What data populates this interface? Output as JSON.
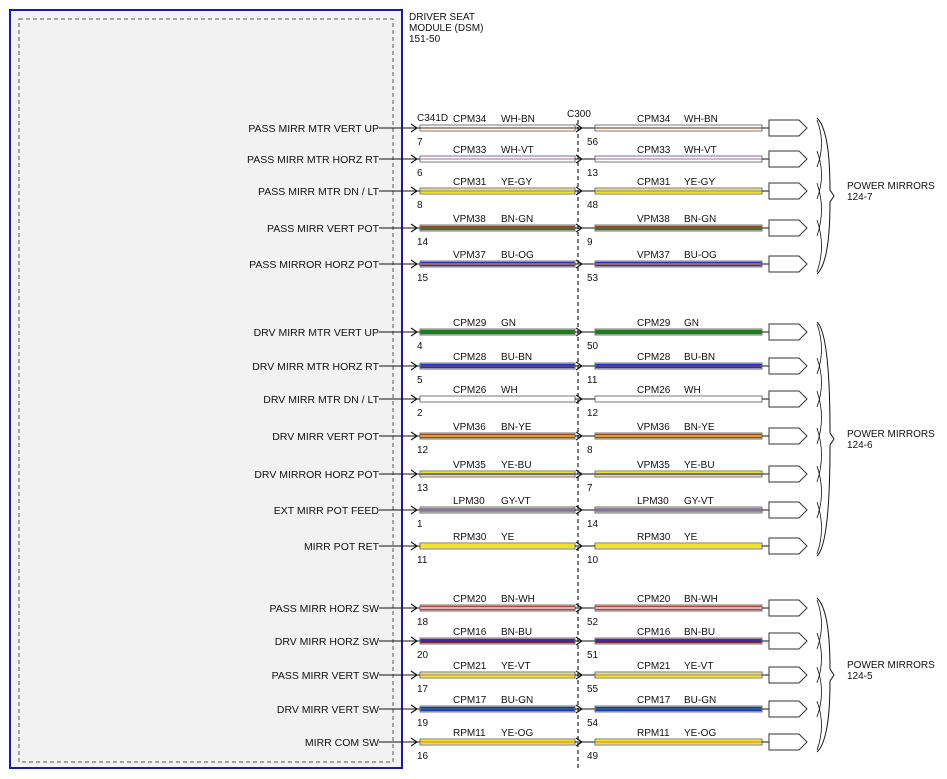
{
  "module": {
    "name_lines": [
      "DRIVER SEAT",
      "MODULE (DSM)",
      "151-50"
    ]
  },
  "connectors": {
    "module_side": "C341D",
    "inline": "C300"
  },
  "circuits": [
    {
      "signal": "PASS MIRR MTR VERT UP",
      "pin_a": "7",
      "pin_b": "56",
      "circuit": "CPM34",
      "color": "WH-BN",
      "wire_colors": [
        "#ffffff",
        "#8b4a2b"
      ]
    },
    {
      "signal": "PASS MIRR MTR HORZ RT",
      "pin_a": "6",
      "pin_b": "13",
      "circuit": "CPM33",
      "color": "WH-VT",
      "wire_colors": [
        "#ffffff",
        "#b58ab8"
      ]
    },
    {
      "signal": "PASS MIRR MTR DN / LT",
      "pin_a": "8",
      "pin_b": "48",
      "circuit": "CPM31",
      "color": "YE-GY",
      "wire_colors": [
        "#f2e22a",
        "#9a9a9a"
      ]
    },
    {
      "signal": "PASS MIRR VERT POT",
      "pin_a": "14",
      "pin_b": "9",
      "circuit": "VPM38",
      "color": "BN-GN",
      "wire_colors": [
        "#8b4a2b",
        "#2e7d32"
      ]
    },
    {
      "signal": "PASS MIRROR HORZ POT",
      "pin_a": "15",
      "pin_b": "53",
      "circuit": "VPM37",
      "color": "BU-OG",
      "wire_colors": [
        "#1c2fd6",
        "#f08a1c"
      ]
    },
    {
      "signal": "DRV MIRR MTR VERT UP",
      "pin_a": "4",
      "pin_b": "50",
      "circuit": "CPM29",
      "color": "GN",
      "wire_colors": [
        "#1f7a1f",
        "#1f7a1f"
      ]
    },
    {
      "signal": "DRV MIRR MTR HORZ RT",
      "pin_a": "5",
      "pin_b": "11",
      "circuit": "CPM28",
      "color": "BU-BN",
      "wire_colors": [
        "#1c2fd6",
        "#8b4a2b"
      ]
    },
    {
      "signal": "DRV MIRR MTR DN / LT",
      "pin_a": "2",
      "pin_b": "12",
      "circuit": "CPM26",
      "color": "WH",
      "wire_colors": [
        "#ffffff",
        "#ffffff"
      ]
    },
    {
      "signal": "DRV MIRR VERT POT",
      "pin_a": "12",
      "pin_b": "8",
      "circuit": "VPM36",
      "color": "BN-YE",
      "wire_colors": [
        "#a0421f",
        "#f2e22a"
      ]
    },
    {
      "signal": "DRV MIRROR HORZ POT",
      "pin_a": "13",
      "pin_b": "7",
      "circuit": "VPM35",
      "color": "YE-BU",
      "wire_colors": [
        "#f2e22a",
        "#1c2fd6"
      ]
    },
    {
      "signal": "EXT MIRR POT FEED",
      "pin_a": "1",
      "pin_b": "14",
      "circuit": "LPM30",
      "color": "GY-VT",
      "wire_colors": [
        "#8e8e96",
        "#8a5fa0"
      ]
    },
    {
      "signal": "MIRR POT RET",
      "pin_a": "11",
      "pin_b": "10",
      "circuit": "RPM30",
      "color": "YE",
      "wire_colors": [
        "#f2e22a",
        "#f2e22a"
      ]
    },
    {
      "signal": "PASS MIRR HORZ SW",
      "pin_a": "18",
      "pin_b": "52",
      "circuit": "CPM20",
      "color": "BN-WH",
      "wire_colors": [
        "#b8403a",
        "#ffffff"
      ]
    },
    {
      "signal": "DRV MIRR HORZ SW",
      "pin_a": "20",
      "pin_b": "51",
      "circuit": "CPM16",
      "color": "BN-BU",
      "wire_colors": [
        "#7a2430",
        "#1c2fd6"
      ]
    },
    {
      "signal": "PASS MIRR VERT SW",
      "pin_a": "17",
      "pin_b": "55",
      "circuit": "CPM21",
      "color": "YE-VT",
      "wire_colors": [
        "#f2e22a",
        "#b58ab8"
      ]
    },
    {
      "signal": "DRV MIRR VERT SW",
      "pin_a": "19",
      "pin_b": "54",
      "circuit": "CPM17",
      "color": "BU-GN",
      "wire_colors": [
        "#1c2fd6",
        "#2e7d32"
      ]
    },
    {
      "signal": "MIRR COM SW",
      "pin_a": "16",
      "pin_b": "49",
      "circuit": "RPM11",
      "color": "YE-OG",
      "wire_colors": [
        "#f2e22a",
        "#f08a1c"
      ]
    }
  ],
  "destinations": [
    {
      "lines": [
        "POWER MIRRORS",
        "124-7"
      ]
    },
    {
      "lines": [
        "POWER MIRRORS",
        "124-6"
      ]
    },
    {
      "lines": [
        "POWER MIRRORS",
        "124-5"
      ]
    }
  ]
}
